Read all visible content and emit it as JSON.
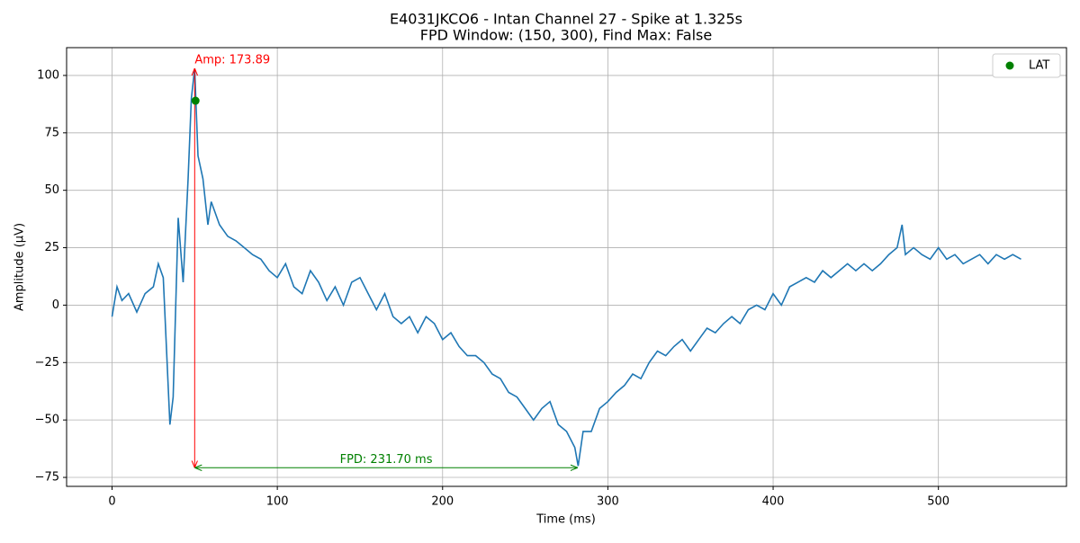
{
  "chart_data": {
    "type": "line",
    "title": "E4031JKCO6 - Intan Channel 27 - Spike at 1.325s",
    "subtitle": "FPD Window: (150, 300), Find Max: False",
    "x_label": "Time (ms)",
    "y_label": "Amplitude (µV)",
    "x": [
      0,
      3,
      6,
      10,
      15,
      20,
      25,
      28,
      31,
      33,
      35,
      37,
      40,
      43,
      46,
      48,
      50,
      52,
      55,
      58,
      60,
      65,
      70,
      75,
      80,
      85,
      90,
      95,
      100,
      105,
      110,
      115,
      120,
      125,
      130,
      135,
      140,
      145,
      150,
      155,
      160,
      165,
      170,
      175,
      180,
      185,
      190,
      195,
      200,
      205,
      210,
      215,
      220,
      225,
      230,
      235,
      240,
      245,
      250,
      255,
      260,
      265,
      270,
      275,
      280,
      282,
      285,
      290,
      295,
      300,
      305,
      310,
      315,
      320,
      325,
      330,
      335,
      340,
      345,
      350,
      355,
      360,
      365,
      370,
      375,
      380,
      385,
      390,
      395,
      400,
      405,
      410,
      415,
      420,
      425,
      430,
      435,
      440,
      445,
      450,
      455,
      460,
      465,
      470,
      475,
      478,
      480,
      485,
      490,
      495,
      500,
      505,
      510,
      515,
      520,
      525,
      530,
      535,
      540,
      545,
      550
    ],
    "series": [
      {
        "color": "#1f77b4",
        "values": [
          -5,
          8,
          2,
          5,
          -3,
          5,
          8,
          18,
          12,
          -20,
          -52,
          -40,
          38,
          10,
          55,
          90,
          103,
          65,
          55,
          35,
          45,
          35,
          30,
          28,
          25,
          22,
          20,
          15,
          12,
          18,
          8,
          5,
          15,
          10,
          2,
          8,
          0,
          10,
          12,
          5,
          -2,
          5,
          -5,
          -8,
          -5,
          -12,
          -5,
          -8,
          -15,
          -12,
          -18,
          -22,
          -22,
          -25,
          -30,
          -32,
          -38,
          -40,
          -45,
          -50,
          -45,
          -42,
          -52,
          -55,
          -62,
          -70,
          -55,
          -55,
          -45,
          -42,
          -38,
          -35,
          -30,
          -32,
          -25,
          -20,
          -22,
          -18,
          -15,
          -20,
          -15,
          -10,
          -12,
          -8,
          -5,
          -8,
          -2,
          0,
          -2,
          5,
          0,
          8,
          10,
          12,
          10,
          15,
          12,
          15,
          18,
          15,
          18,
          15,
          18,
          22,
          25,
          35,
          22,
          25,
          22,
          20,
          25,
          20,
          22,
          18,
          20,
          22,
          18,
          22,
          20,
          22,
          20
        ]
      }
    ],
    "markers": {
      "name": "LAT",
      "color": "green",
      "x": [
        50.5
      ],
      "values": [
        89
      ]
    },
    "annotations": [
      {
        "text": "Amp: 173.89",
        "color": "red",
        "x1": 50,
        "y1": -70.79,
        "x2": 50,
        "y2": 103.1
      },
      {
        "text": "FPD: 231.70 ms",
        "color": "green",
        "x1": 50,
        "y1": -70.79,
        "x2": 281.7,
        "y2": -70.79
      }
    ],
    "xlim": [
      -27.5,
      577.5
    ],
    "ylim": [
      -78.9,
      112.1
    ],
    "xticks": [
      0,
      100,
      200,
      300,
      400,
      500
    ],
    "yticks": [
      {
        "value": -75,
        "label": "−75"
      },
      {
        "value": -50,
        "label": "−50"
      },
      {
        "value": -25,
        "label": "−25"
      },
      0,
      25,
      50,
      75,
      100
    ],
    "grid": true,
    "legend": "upper right"
  }
}
